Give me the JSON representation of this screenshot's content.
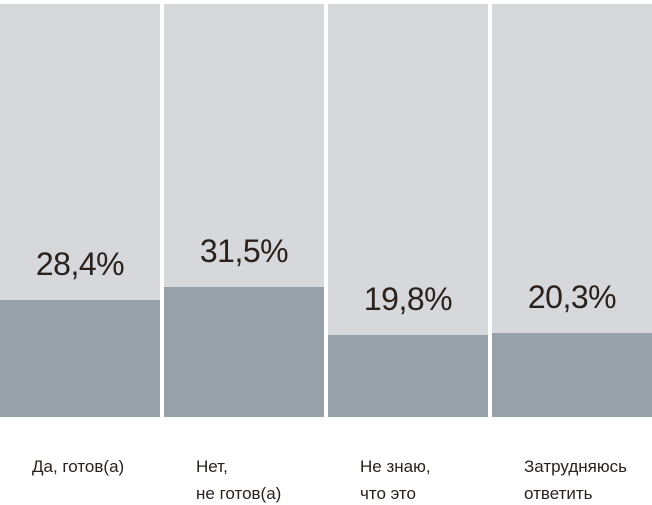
{
  "colors": {
    "background": "#ffffff",
    "track": "#d7d8db",
    "fill": "#97a1aa",
    "text": "#2a211c"
  },
  "chart_data": {
    "type": "bar",
    "title": "",
    "xlabel": "",
    "ylabel": "",
    "categories": [
      "Да, готов(а)",
      "Нет, не готов(а)",
      "Не знаю, что это",
      "Затрудняюсь ответить"
    ],
    "category_lines": [
      [
        "Да, готов(а)",
        ""
      ],
      [
        "Нет,",
        "не готов(а)"
      ],
      [
        "Не знаю,",
        "что это"
      ],
      [
        "Затрудняюсь",
        "ответить"
      ]
    ],
    "values": [
      28.4,
      31.5,
      19.8,
      20.3
    ],
    "value_labels": [
      "28,4%",
      "31,5%",
      "19,8%",
      "20,3%"
    ],
    "unit": "%",
    "ylim": [
      0,
      100
    ],
    "grid": false,
    "legend": false,
    "layout": "full-height gray tracks; fill height equals value percent of track; value label centered above fill"
  }
}
